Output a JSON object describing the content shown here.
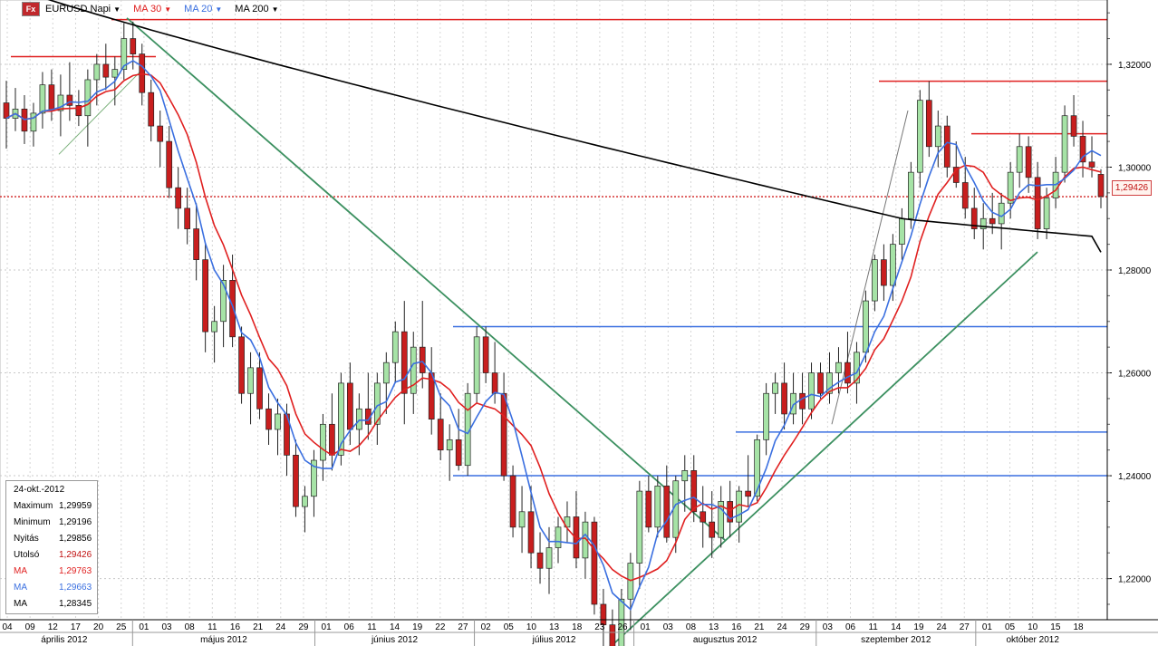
{
  "toolbar": {
    "symbol": "EURUSD Napi",
    "ma30": "MA 30",
    "ma20": "MA 20",
    "ma200": "MA 200",
    "logo": "Fx"
  },
  "info": {
    "date": "24-okt.-2012",
    "rows": [
      {
        "label": "Maximum",
        "value": "1,29959"
      },
      {
        "label": "Minimum",
        "value": "1,29196"
      },
      {
        "label": "Nyitás",
        "value": "1,29856"
      },
      {
        "label": "Utolsó",
        "value": "1,29426"
      },
      {
        "label": "MA",
        "value": "1,29763"
      },
      {
        "label": "MA",
        "value": "1,29663"
      },
      {
        "label": "MA",
        "value": "1,28345"
      }
    ]
  },
  "last_price_label": "1,29426",
  "chart_data": {
    "type": "candlestick",
    "ylim": [
      1.212,
      1.3325
    ],
    "y_ticks": [
      "1,22000",
      "1,24000",
      "1,26000",
      "1,28000",
      "1,30000",
      "1,32000"
    ],
    "y_tick_values": [
      1.22,
      1.24,
      1.26,
      1.28,
      1.3,
      1.32
    ],
    "x_day_labels": [
      "04",
      "09",
      "12",
      "17",
      "20",
      "25",
      "01",
      "03",
      "08",
      "11",
      "16",
      "21",
      "24",
      "29",
      "01",
      "06",
      "11",
      "14",
      "19",
      "22",
      "27",
      "02",
      "05",
      "10",
      "13",
      "18",
      "23",
      "26",
      "01",
      "03",
      "08",
      "13",
      "16",
      "21",
      "24",
      "29",
      "03",
      "06",
      "11",
      "14",
      "19",
      "24",
      "27",
      "01",
      "05",
      "10",
      "15",
      "18"
    ],
    "months": [
      "április 2012",
      "május 2012",
      "június 2012",
      "július 2012",
      "augusztus 2012",
      "szeptember 2012",
      "október 2012"
    ],
    "colors": {
      "up": "#a6e3a6",
      "down": "#c81e1e",
      "ma30": "#e02020",
      "ma20": "#3a6fe0",
      "ma200": "#000000",
      "support": "#3a6fe0",
      "resistance": "#e02020",
      "trend": "#3c9060"
    },
    "candles_ohlc": [
      [
        1.3125,
        1.3168,
        1.3036,
        1.3095
      ],
      [
        1.3095,
        1.3154,
        1.307,
        1.3113
      ],
      [
        1.3113,
        1.314,
        1.3045,
        1.307
      ],
      [
        1.307,
        1.3125,
        1.304,
        1.3105
      ],
      [
        1.3105,
        1.3185,
        1.3075,
        1.316
      ],
      [
        1.316,
        1.319,
        1.309,
        1.311
      ],
      [
        1.311,
        1.318,
        1.306,
        1.314
      ],
      [
        1.314,
        1.3204,
        1.309,
        1.312
      ],
      [
        1.312,
        1.315,
        1.308,
        1.31
      ],
      [
        1.31,
        1.319,
        1.304,
        1.317
      ],
      [
        1.317,
        1.322,
        1.312,
        1.32
      ],
      [
        1.32,
        1.324,
        1.315,
        1.3175
      ],
      [
        1.3175,
        1.3215,
        1.312,
        1.319
      ],
      [
        1.319,
        1.328,
        1.317,
        1.325
      ],
      [
        1.325,
        1.3283,
        1.319,
        1.322
      ],
      [
        1.322,
        1.324,
        1.312,
        1.3145
      ],
      [
        1.3145,
        1.317,
        1.305,
        1.308
      ],
      [
        1.308,
        1.311,
        1.3,
        1.305
      ],
      [
        1.305,
        1.308,
        1.294,
        1.296
      ],
      [
        1.296,
        1.3,
        1.288,
        1.292
      ],
      [
        1.292,
        1.296,
        1.285,
        1.288
      ],
      [
        1.288,
        1.293,
        1.278,
        1.282
      ],
      [
        1.282,
        1.285,
        1.264,
        1.268
      ],
      [
        1.268,
        1.273,
        1.262,
        1.27
      ],
      [
        1.27,
        1.281,
        1.265,
        1.278
      ],
      [
        1.278,
        1.283,
        1.265,
        1.267
      ],
      [
        1.267,
        1.269,
        1.254,
        1.256
      ],
      [
        1.256,
        1.264,
        1.25,
        1.261
      ],
      [
        1.261,
        1.264,
        1.251,
        1.253
      ],
      [
        1.253,
        1.256,
        1.246,
        1.249
      ],
      [
        1.249,
        1.255,
        1.244,
        1.252
      ],
      [
        1.252,
        1.254,
        1.24,
        1.244
      ],
      [
        1.244,
        1.247,
        1.232,
        1.234
      ],
      [
        1.234,
        1.238,
        1.229,
        1.236
      ],
      [
        1.236,
        1.245,
        1.232,
        1.243
      ],
      [
        1.243,
        1.252,
        1.239,
        1.25
      ],
      [
        1.25,
        1.256,
        1.241,
        1.244
      ],
      [
        1.244,
        1.26,
        1.242,
        1.258
      ],
      [
        1.258,
        1.262,
        1.246,
        1.249
      ],
      [
        1.249,
        1.256,
        1.244,
        1.253
      ],
      [
        1.253,
        1.26,
        1.247,
        1.25
      ],
      [
        1.25,
        1.26,
        1.246,
        1.258
      ],
      [
        1.258,
        1.264,
        1.252,
        1.262
      ],
      [
        1.262,
        1.27,
        1.258,
        1.268
      ],
      [
        1.268,
        1.274,
        1.25,
        1.256
      ],
      [
        1.256,
        1.268,
        1.252,
        1.265
      ],
      [
        1.265,
        1.274,
        1.257,
        1.26
      ],
      [
        1.26,
        1.265,
        1.248,
        1.251
      ],
      [
        1.251,
        1.256,
        1.243,
        1.245
      ],
      [
        1.245,
        1.25,
        1.239,
        1.247
      ],
      [
        1.247,
        1.253,
        1.241,
        1.242
      ],
      [
        1.242,
        1.258,
        1.24,
        1.256
      ],
      [
        1.256,
        1.269,
        1.254,
        1.267
      ],
      [
        1.267,
        1.269,
        1.258,
        1.26
      ],
      [
        1.26,
        1.266,
        1.254,
        1.256
      ],
      [
        1.256,
        1.26,
        1.239,
        1.24
      ],
      [
        1.24,
        1.242,
        1.228,
        1.23
      ],
      [
        1.23,
        1.238,
        1.225,
        1.233
      ],
      [
        1.233,
        1.238,
        1.222,
        1.225
      ],
      [
        1.225,
        1.229,
        1.219,
        1.222
      ],
      [
        1.222,
        1.23,
        1.217,
        1.226
      ],
      [
        1.226,
        1.232,
        1.223,
        1.23
      ],
      [
        1.23,
        1.235,
        1.227,
        1.232
      ],
      [
        1.232,
        1.237,
        1.222,
        1.224
      ],
      [
        1.224,
        1.233,
        1.22,
        1.231
      ],
      [
        1.231,
        1.232,
        1.213,
        1.215
      ],
      [
        1.215,
        1.218,
        1.204,
        1.211
      ],
      [
        1.211,
        1.214,
        1.204,
        1.205
      ],
      [
        1.205,
        1.218,
        1.204,
        1.216
      ],
      [
        1.216,
        1.225,
        1.21,
        1.223
      ],
      [
        1.223,
        1.239,
        1.218,
        1.237
      ],
      [
        1.237,
        1.24,
        1.229,
        1.23
      ],
      [
        1.23,
        1.24,
        1.228,
        1.238
      ],
      [
        1.238,
        1.242,
        1.227,
        1.228
      ],
      [
        1.228,
        1.24,
        1.225,
        1.239
      ],
      [
        1.239,
        1.244,
        1.233,
        1.241
      ],
      [
        1.241,
        1.244,
        1.231,
        1.233
      ],
      [
        1.233,
        1.238,
        1.226,
        1.231
      ],
      [
        1.231,
        1.237,
        1.224,
        1.228
      ],
      [
        1.228,
        1.238,
        1.226,
        1.235
      ],
      [
        1.235,
        1.239,
        1.228,
        1.231
      ],
      [
        1.231,
        1.238,
        1.227,
        1.237
      ],
      [
        1.237,
        1.244,
        1.234,
        1.236
      ],
      [
        1.236,
        1.248,
        1.235,
        1.247
      ],
      [
        1.247,
        1.258,
        1.244,
        1.256
      ],
      [
        1.256,
        1.26,
        1.252,
        1.258
      ],
      [
        1.258,
        1.262,
        1.249,
        1.252
      ],
      [
        1.252,
        1.26,
        1.25,
        1.256
      ],
      [
        1.256,
        1.26,
        1.25,
        1.253
      ],
      [
        1.253,
        1.262,
        1.251,
        1.26
      ],
      [
        1.26,
        1.262,
        1.255,
        1.256
      ],
      [
        1.256,
        1.264,
        1.254,
        1.26
      ],
      [
        1.26,
        1.265,
        1.256,
        1.262
      ],
      [
        1.262,
        1.268,
        1.256,
        1.258
      ],
      [
        1.258,
        1.266,
        1.254,
        1.264
      ],
      [
        1.264,
        1.276,
        1.262,
        1.274
      ],
      [
        1.274,
        1.283,
        1.272,
        1.282
      ],
      [
        1.282,
        1.285,
        1.274,
        1.277
      ],
      [
        1.277,
        1.287,
        1.274,
        1.285
      ],
      [
        1.285,
        1.292,
        1.282,
        1.29
      ],
      [
        1.29,
        1.301,
        1.288,
        1.299
      ],
      [
        1.299,
        1.315,
        1.296,
        1.313
      ],
      [
        1.313,
        1.3167,
        1.302,
        1.304
      ],
      [
        1.304,
        1.311,
        1.3,
        1.308
      ],
      [
        1.308,
        1.31,
        1.298,
        1.3
      ],
      [
        1.3,
        1.305,
        1.296,
        1.297
      ],
      [
        1.297,
        1.302,
        1.29,
        1.292
      ],
      [
        1.292,
        1.296,
        1.286,
        1.288
      ],
      [
        1.288,
        1.293,
        1.284,
        1.29
      ],
      [
        1.29,
        1.295,
        1.287,
        1.289
      ],
      [
        1.289,
        1.295,
        1.284,
        1.293
      ],
      [
        1.293,
        1.301,
        1.29,
        1.299
      ],
      [
        1.299,
        1.3065,
        1.296,
        1.304
      ],
      [
        1.304,
        1.306,
        1.295,
        1.298
      ],
      [
        1.298,
        1.301,
        1.286,
        1.288
      ],
      [
        1.288,
        1.296,
        1.286,
        1.294
      ],
      [
        1.294,
        1.302,
        1.292,
        1.299
      ],
      [
        1.299,
        1.312,
        1.297,
        1.31
      ],
      [
        1.31,
        1.314,
        1.304,
        1.306
      ],
      [
        1.306,
        1.309,
        1.298,
        1.301
      ],
      [
        1.301,
        1.306,
        1.298,
        1.3
      ],
      [
        1.2986,
        1.2996,
        1.292,
        1.2943
      ]
    ],
    "ma30_last": 1.29763,
    "ma20_last": 1.29663,
    "ma200_last": 1.28345,
    "last": 1.29426
  }
}
